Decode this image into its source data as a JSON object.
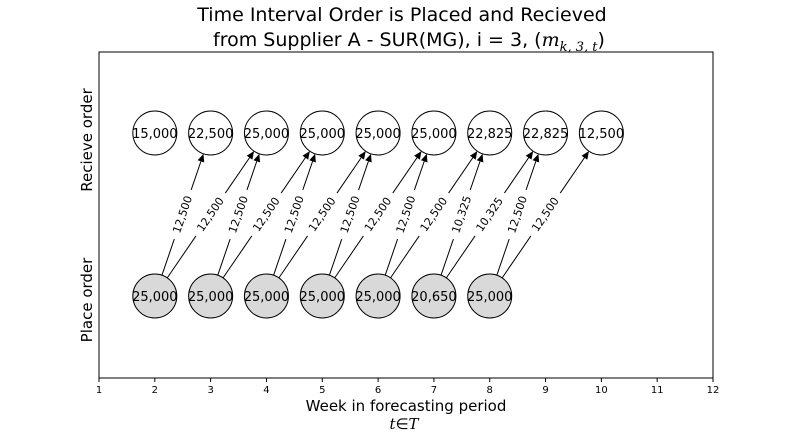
{
  "chart_data": {
    "type": "network",
    "title_line1": "Time Interval Order is Placed and Recieved",
    "title_line2_prefix": "from Supplier A - SUR(MG), i = 3, (",
    "title_math_m": "m",
    "title_math_sub": "k, 3, t",
    "title_line2_suffix": ")",
    "xlabel": "Week in forecasting period",
    "xlabel_math_t": "t",
    "xlabel_math_in": "∈",
    "xlabel_math_set": "T",
    "ylabel_top": "Recieve order",
    "ylabel_bottom": "Place order",
    "xlim": [
      1,
      12
    ],
    "xticks": [
      "1",
      "2",
      "3",
      "4",
      "5",
      "6",
      "7",
      "8",
      "9",
      "10",
      "11",
      "12"
    ],
    "place_nodes": [
      {
        "week": 2,
        "label": "25,000"
      },
      {
        "week": 3,
        "label": "25,000"
      },
      {
        "week": 4,
        "label": "25,000"
      },
      {
        "week": 5,
        "label": "25,000"
      },
      {
        "week": 6,
        "label": "25,000"
      },
      {
        "week": 7,
        "label": "20,650"
      },
      {
        "week": 8,
        "label": "25,000"
      }
    ],
    "receive_nodes": [
      {
        "week": 2,
        "label": "15,000"
      },
      {
        "week": 3,
        "label": "22,500"
      },
      {
        "week": 4,
        "label": "25,000"
      },
      {
        "week": 5,
        "label": "25,000"
      },
      {
        "week": 6,
        "label": "25,000"
      },
      {
        "week": 7,
        "label": "25,000"
      },
      {
        "week": 8,
        "label": "22,825"
      },
      {
        "week": 9,
        "label": "22,825"
      },
      {
        "week": 10,
        "label": "12,500"
      }
    ],
    "edges": [
      {
        "from": 2,
        "to": 3,
        "label": "12,500"
      },
      {
        "from": 2,
        "to": 4,
        "label": "12,500"
      },
      {
        "from": 3,
        "to": 4,
        "label": "12,500"
      },
      {
        "from": 3,
        "to": 5,
        "label": "12,500"
      },
      {
        "from": 4,
        "to": 5,
        "label": "12,500"
      },
      {
        "from": 4,
        "to": 6,
        "label": "12,500"
      },
      {
        "from": 5,
        "to": 6,
        "label": "12,500"
      },
      {
        "from": 5,
        "to": 7,
        "label": "12,500"
      },
      {
        "from": 6,
        "to": 7,
        "label": "12,500"
      },
      {
        "from": 6,
        "to": 8,
        "label": "12,500"
      },
      {
        "from": 7,
        "to": 8,
        "label": "10,325"
      },
      {
        "from": 7,
        "to": 9,
        "label": "10,325"
      },
      {
        "from": 8,
        "to": 9,
        "label": "12,500"
      },
      {
        "from": 8,
        "to": 10,
        "label": "12,500"
      }
    ],
    "colors": {
      "place_fill": "#d9d9d9",
      "receive_fill": "#ffffff",
      "stroke": "#000000",
      "background": "#ffffff"
    }
  }
}
